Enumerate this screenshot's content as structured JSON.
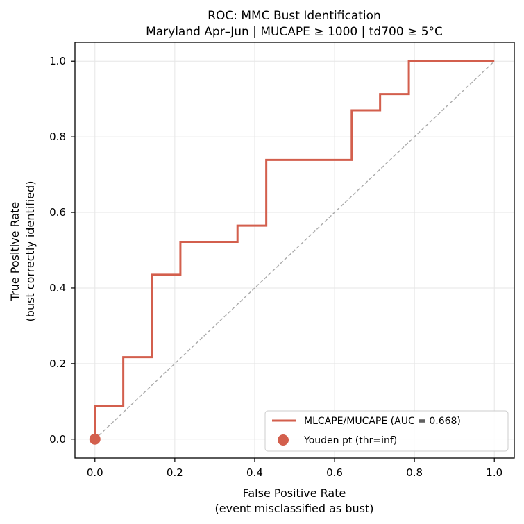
{
  "chart_data": {
    "type": "line",
    "title_line1": "ROC: MMC Bust Identification",
    "title_line2": "Maryland Apr–Jun | MUCAPE ≥ 1000 | td700 ≥ 5°C",
    "xlabel_line1": "False Positive Rate",
    "xlabel_line2": "(event misclassified as bust)",
    "ylabel_line1": "True Positive Rate",
    "ylabel_line2": "(bust correctly identified)",
    "xlim": [
      -0.05,
      1.05
    ],
    "ylim": [
      -0.05,
      1.05
    ],
    "xticks": [
      "0.0",
      "0.2",
      "0.4",
      "0.6",
      "0.8",
      "1.0"
    ],
    "yticks": [
      "0.0",
      "0.2",
      "0.4",
      "0.6",
      "0.8",
      "1.0"
    ],
    "grid": true,
    "legend_position": "lower-right",
    "series": [
      {
        "name": "MLCAPE/MUCAPE  (AUC = 0.668)",
        "color": "#d35f4d",
        "step": true,
        "points": [
          [
            0.0,
            0.0
          ],
          [
            0.0,
            0.087
          ],
          [
            0.071,
            0.087
          ],
          [
            0.071,
            0.217
          ],
          [
            0.143,
            0.217
          ],
          [
            0.143,
            0.435
          ],
          [
            0.214,
            0.435
          ],
          [
            0.214,
            0.522
          ],
          [
            0.357,
            0.522
          ],
          [
            0.357,
            0.565
          ],
          [
            0.429,
            0.565
          ],
          [
            0.429,
            0.739
          ],
          [
            0.643,
            0.739
          ],
          [
            0.643,
            0.87
          ],
          [
            0.714,
            0.87
          ],
          [
            0.714,
            0.913
          ],
          [
            0.786,
            0.913
          ],
          [
            0.786,
            1.0
          ],
          [
            1.0,
            1.0
          ]
        ]
      }
    ],
    "diagonal": {
      "from": [
        0,
        0
      ],
      "to": [
        1,
        1
      ],
      "color": "#aaaaaa"
    },
    "marker": {
      "name": "Youden pt (thr=inf)",
      "x": 0.0,
      "y": 0.0,
      "color": "#d35f4d"
    }
  }
}
